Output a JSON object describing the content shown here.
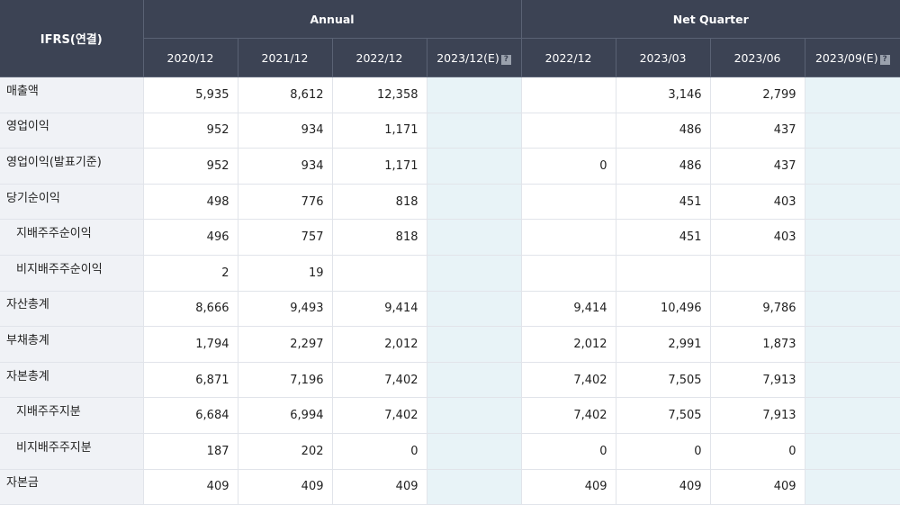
{
  "header": {
    "ifrs_label": "IFRS(연결)",
    "annual_label": "Annual",
    "quarter_label": "Net Quarter",
    "annual_periods": [
      "2020/12",
      "2021/12",
      "2022/12",
      "2023/12(E)"
    ],
    "quarter_periods": [
      "2022/12",
      "2023/03",
      "2023/06",
      "2023/09(E)"
    ],
    "help_glyph": "?"
  },
  "rows": [
    {
      "label": "매출액",
      "sub": false,
      "annual": [
        "5,935",
        "8,612",
        "12,358",
        ""
      ],
      "quarter": [
        "",
        "3,146",
        "2,799",
        ""
      ]
    },
    {
      "label": "영업이익",
      "sub": false,
      "annual": [
        "952",
        "934",
        "1,171",
        ""
      ],
      "quarter": [
        "",
        "486",
        "437",
        ""
      ]
    },
    {
      "label": "영업이익(발표기준)",
      "sub": false,
      "annual": [
        "952",
        "934",
        "1,171",
        ""
      ],
      "quarter": [
        "0",
        "486",
        "437",
        ""
      ]
    },
    {
      "label": "당기순이익",
      "sub": false,
      "annual": [
        "498",
        "776",
        "818",
        ""
      ],
      "quarter": [
        "",
        "451",
        "403",
        ""
      ]
    },
    {
      "label": "지배주주순이익",
      "sub": true,
      "annual": [
        "496",
        "757",
        "818",
        ""
      ],
      "quarter": [
        "",
        "451",
        "403",
        ""
      ]
    },
    {
      "label": "비지배주주순이익",
      "sub": true,
      "annual": [
        "2",
        "19",
        "",
        ""
      ],
      "quarter": [
        "",
        "",
        "",
        ""
      ]
    },
    {
      "label": "자산총계",
      "sub": false,
      "annual": [
        "8,666",
        "9,493",
        "9,414",
        ""
      ],
      "quarter": [
        "9,414",
        "10,496",
        "9,786",
        ""
      ]
    },
    {
      "label": "부채총계",
      "sub": false,
      "annual": [
        "1,794",
        "2,297",
        "2,012",
        ""
      ],
      "quarter": [
        "2,012",
        "2,991",
        "1,873",
        ""
      ]
    },
    {
      "label": "자본총계",
      "sub": false,
      "annual": [
        "6,871",
        "7,196",
        "7,402",
        ""
      ],
      "quarter": [
        "7,402",
        "7,505",
        "7,913",
        ""
      ]
    },
    {
      "label": "지배주주지분",
      "sub": true,
      "annual": [
        "6,684",
        "6,994",
        "7,402",
        ""
      ],
      "quarter": [
        "7,402",
        "7,505",
        "7,913",
        ""
      ]
    },
    {
      "label": "비지배주주지분",
      "sub": true,
      "annual": [
        "187",
        "202",
        "0",
        ""
      ],
      "quarter": [
        "0",
        "0",
        "0",
        ""
      ]
    },
    {
      "label": "자본금",
      "sub": false,
      "annual": [
        "409",
        "409",
        "409",
        ""
      ],
      "quarter": [
        "409",
        "409",
        "409",
        ""
      ]
    }
  ]
}
